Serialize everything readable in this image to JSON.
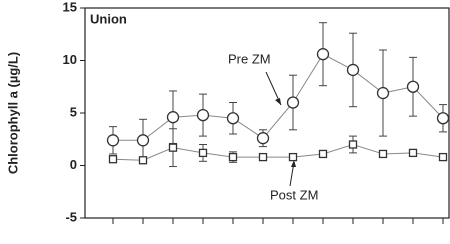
{
  "chart_data": {
    "type": "line",
    "y_label": "Chlorophyll a (µg/L)",
    "annotations": [
      "Union",
      "Pre ZM",
      "Post ZM"
    ],
    "categories": [
      null,
      null,
      null,
      null,
      null,
      null,
      null,
      null,
      null,
      null,
      null,
      null
    ],
    "series": [
      {
        "name": "Pre ZM",
        "color": "#333333",
        "marker": "circle",
        "values": [
          2.4,
          2.4,
          4.6,
          4.8,
          4.5,
          2.6,
          6.0,
          10.6,
          9.1,
          6.9,
          7.5,
          4.5
        ],
        "errors": [
          1.3,
          2.0,
          2.5,
          2.0,
          1.5,
          0.8,
          2.6,
          3.0,
          3.5,
          4.1,
          2.8,
          1.3
        ]
      },
      {
        "name": "Post ZM",
        "color": "#333333",
        "marker": "square",
        "values": [
          0.6,
          0.5,
          1.7,
          1.2,
          0.8,
          0.8,
          0.8,
          1.1,
          2.0,
          1.1,
          1.2,
          0.8
        ],
        "errors": [
          0.3,
          0.3,
          1.8,
          0.8,
          0.5,
          0.2,
          0.2,
          0.2,
          0.8,
          0.2,
          0.2,
          0.2
        ]
      }
    ],
    "ylim": [
      -5,
      15
    ],
    "yticks": [
      -5,
      0,
      5,
      10,
      15
    ]
  }
}
